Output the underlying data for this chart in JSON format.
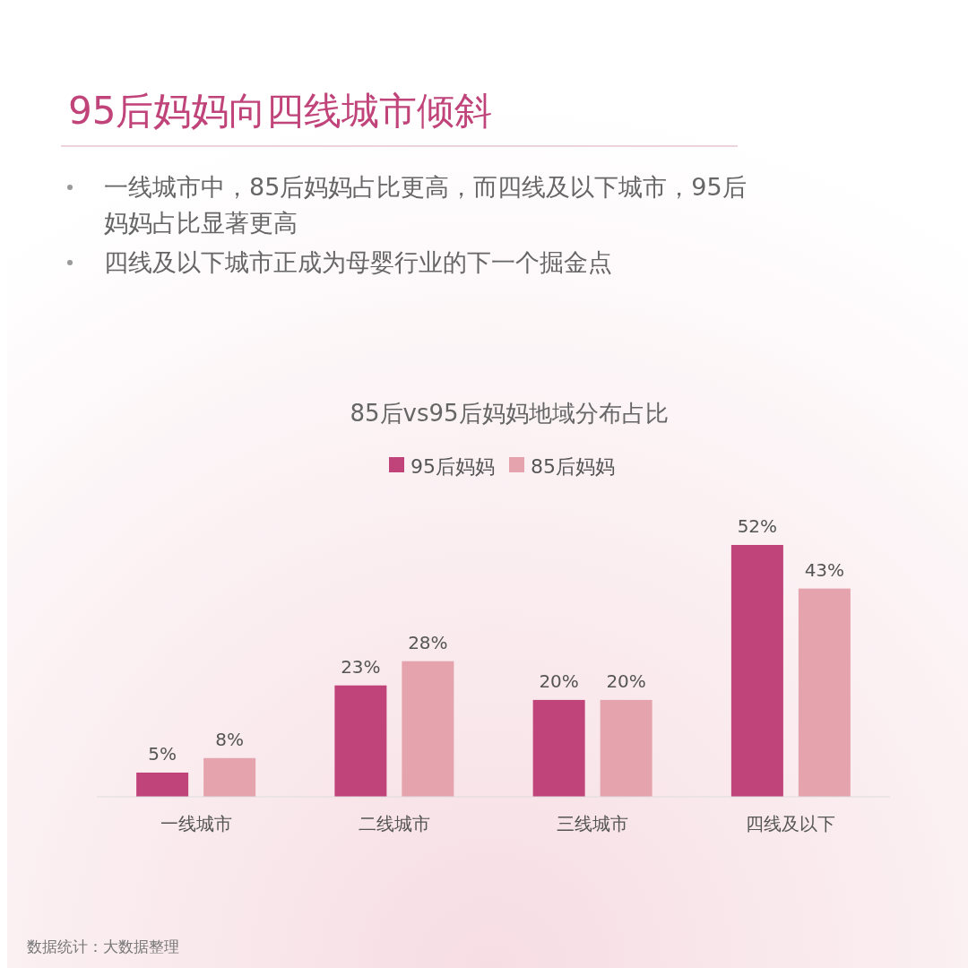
{
  "chart_data": {
    "type": "bar",
    "title": "95后妈妈向四线城市倾斜",
    "subtitle": "85后vs95后妈妈地域分布占比",
    "annotations": [
      "一线城市中，85后妈妈占比更高，而四线及以下城市，95后妈妈占比显著更高",
      "四线及以下城市正成为母婴行业的下一个掘金点",
      "数据统计：大数据整理"
    ],
    "categories": [
      "一线城市",
      "二线城市",
      "三线城市",
      "四线及以下"
    ],
    "series": [
      {
        "name": "95后妈妈",
        "color": "#c0437a",
        "values": [
          5,
          23,
          20,
          52
        ],
        "value_labels": [
          "5%",
          "23%",
          "20%",
          "52%"
        ]
      },
      {
        "name": "85后妈妈",
        "color": "#e5a4ad",
        "values": [
          8,
          28,
          20,
          43
        ],
        "value_labels": [
          "8%",
          "28%",
          "20%",
          "43%"
        ]
      }
    ],
    "legend": "top"
  }
}
